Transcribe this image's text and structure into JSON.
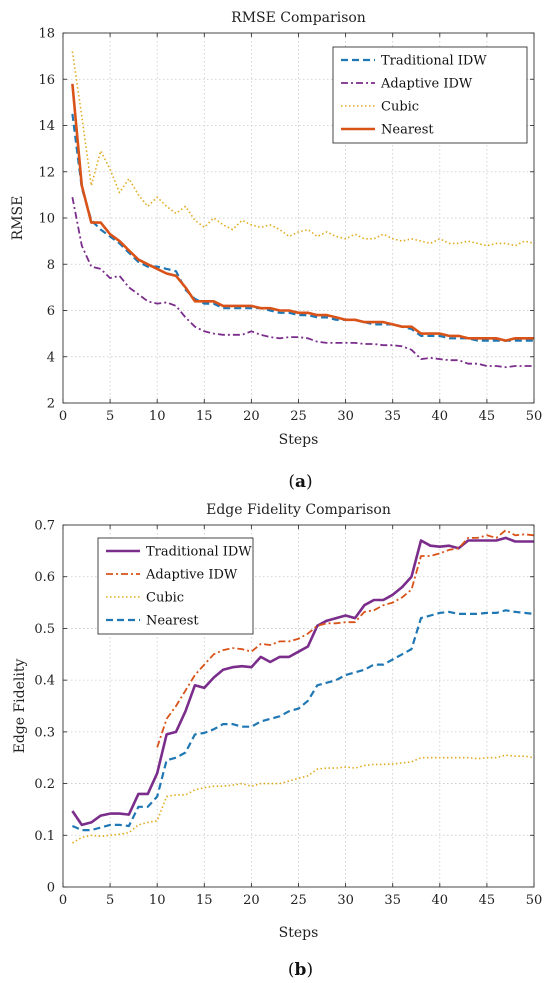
{
  "chart_data": [
    {
      "type": "line",
      "title": "RMSE Comparison",
      "xlabel": "Steps",
      "ylabel": "RMSE",
      "xlim": [
        0,
        50
      ],
      "ylim": [
        2,
        18
      ],
      "xticks": [
        0,
        5,
        10,
        15,
        20,
        25,
        30,
        35,
        40,
        45,
        50
      ],
      "yticks": [
        2,
        4,
        6,
        8,
        10,
        12,
        14,
        16,
        18
      ],
      "grid": true,
      "legend_position": "top-right",
      "panel_label": {
        "open": "(",
        "letter": "a",
        "close": ")"
      },
      "x": [
        1,
        2,
        3,
        4,
        5,
        6,
        7,
        8,
        9,
        10,
        11,
        12,
        13,
        14,
        15,
        16,
        17,
        18,
        19,
        20,
        21,
        22,
        23,
        24,
        25,
        26,
        27,
        28,
        29,
        30,
        31,
        32,
        33,
        34,
        35,
        36,
        37,
        38,
        39,
        40,
        41,
        42,
        43,
        44,
        45,
        46,
        47,
        48,
        49,
        50
      ],
      "series": [
        {
          "name": "Traditional IDW",
          "color": "#1f77b4",
          "dash": "dashed",
          "values": [
            14.5,
            11.3,
            9.9,
            9.5,
            9.2,
            8.9,
            8.5,
            8.1,
            7.9,
            7.9,
            7.8,
            7.7,
            6.9,
            6.5,
            6.3,
            6.3,
            6.1,
            6.1,
            6.1,
            6.1,
            6.1,
            6.0,
            5.9,
            5.9,
            5.8,
            5.8,
            5.7,
            5.7,
            5.6,
            5.6,
            5.6,
            5.5,
            5.4,
            5.4,
            5.4,
            5.3,
            5.2,
            4.9,
            4.9,
            4.9,
            4.8,
            4.8,
            4.8,
            4.7,
            4.7,
            4.7,
            4.7,
            4.7,
            4.7,
            4.7
          ]
        },
        {
          "name": "Adaptive IDW",
          "color": "#7b2d8b",
          "dash": "dashdot",
          "values": [
            10.9,
            8.8,
            7.9,
            7.8,
            7.4,
            7.5,
            7.0,
            6.7,
            6.4,
            6.3,
            6.35,
            6.2,
            5.7,
            5.3,
            5.1,
            5.0,
            4.95,
            4.95,
            4.95,
            5.1,
            4.95,
            4.85,
            4.8,
            4.85,
            4.85,
            4.8,
            4.65,
            4.6,
            4.6,
            4.6,
            4.6,
            4.55,
            4.55,
            4.5,
            4.5,
            4.45,
            4.3,
            3.9,
            3.95,
            3.9,
            3.85,
            3.85,
            3.7,
            3.7,
            3.6,
            3.6,
            3.55,
            3.6,
            3.6,
            3.6
          ]
        },
        {
          "name": "Cubic",
          "color": "#e0ab1e",
          "dash": "dotted",
          "values": [
            17.2,
            14.4,
            11.4,
            12.9,
            12.1,
            11.1,
            11.7,
            11.0,
            10.5,
            10.9,
            10.5,
            10.2,
            10.5,
            9.9,
            9.6,
            10.0,
            9.7,
            9.5,
            9.9,
            9.7,
            9.6,
            9.7,
            9.5,
            9.2,
            9.4,
            9.5,
            9.2,
            9.4,
            9.2,
            9.1,
            9.3,
            9.1,
            9.1,
            9.3,
            9.1,
            9.0,
            9.1,
            9.0,
            8.9,
            9.1,
            8.9,
            8.9,
            9.0,
            8.9,
            8.8,
            8.9,
            8.9,
            8.8,
            9.0,
            8.9
          ]
        },
        {
          "name": "Nearest",
          "color": "#d95319",
          "dash": "solid",
          "values": [
            15.8,
            11.4,
            9.8,
            9.8,
            9.3,
            9.0,
            8.6,
            8.2,
            8.0,
            7.8,
            7.6,
            7.5,
            7.0,
            6.4,
            6.4,
            6.4,
            6.2,
            6.2,
            6.2,
            6.2,
            6.1,
            6.1,
            6.0,
            6.0,
            5.9,
            5.9,
            5.8,
            5.8,
            5.7,
            5.6,
            5.6,
            5.5,
            5.5,
            5.5,
            5.4,
            5.3,
            5.3,
            5.0,
            5.0,
            5.0,
            4.9,
            4.9,
            4.8,
            4.8,
            4.8,
            4.8,
            4.7,
            4.8,
            4.8,
            4.8
          ]
        }
      ]
    },
    {
      "type": "line",
      "title": "Edge Fidelity Comparison",
      "xlabel": "Steps",
      "ylabel": "Edge Fidelity",
      "xlim": [
        0,
        50
      ],
      "ylim": [
        0,
        0.7
      ],
      "xticks": [
        0,
        5,
        10,
        15,
        20,
        25,
        30,
        35,
        40,
        45,
        50
      ],
      "yticks": [
        0,
        0.1,
        0.2,
        0.3,
        0.4,
        0.5,
        0.6,
        0.7
      ],
      "grid": true,
      "legend_position": "top-left",
      "panel_label": {
        "open": "(",
        "letter": "b",
        "close": ")"
      },
      "x": [
        1,
        2,
        3,
        4,
        5,
        6,
        7,
        8,
        9,
        10,
        11,
        12,
        13,
        14,
        15,
        16,
        17,
        18,
        19,
        20,
        21,
        22,
        23,
        24,
        25,
        26,
        27,
        28,
        29,
        30,
        31,
        32,
        33,
        34,
        35,
        36,
        37,
        38,
        39,
        40,
        41,
        42,
        43,
        44,
        45,
        46,
        47,
        48,
        49,
        50
      ],
      "series": [
        {
          "name": "Traditional IDW",
          "color": "#7b2d8b",
          "dash": "solid",
          "values": [
            0.147,
            0.12,
            0.125,
            0.138,
            0.142,
            0.142,
            0.14,
            0.18,
            0.18,
            0.22,
            0.295,
            0.3,
            0.34,
            0.39,
            0.385,
            0.405,
            0.42,
            0.425,
            0.427,
            0.425,
            0.445,
            0.435,
            0.445,
            0.445,
            0.455,
            0.465,
            0.505,
            0.515,
            0.52,
            0.525,
            0.52,
            0.545,
            0.555,
            0.555,
            0.565,
            0.58,
            0.6,
            0.67,
            0.66,
            0.658,
            0.66,
            0.655,
            0.67,
            0.67,
            0.67,
            0.67,
            0.675,
            0.668,
            0.668,
            0.668
          ]
        },
        {
          "name": "Adaptive IDW",
          "color": "#d95319",
          "dash": "dashdot",
          "values": [
            null,
            null,
            null,
            null,
            null,
            null,
            null,
            null,
            null,
            0.27,
            0.325,
            0.35,
            0.38,
            0.41,
            0.43,
            0.45,
            0.458,
            0.462,
            0.46,
            0.455,
            0.47,
            0.468,
            0.475,
            0.475,
            0.48,
            0.49,
            0.505,
            0.51,
            0.51,
            0.512,
            0.512,
            0.532,
            0.535,
            0.545,
            0.55,
            0.56,
            0.575,
            0.64,
            0.64,
            0.645,
            0.652,
            0.655,
            0.675,
            0.675,
            0.68,
            0.675,
            0.69,
            0.68,
            0.682,
            0.68
          ]
        },
        {
          "name": "Cubic",
          "color": "#e0ab1e",
          "dash": "dotted",
          "values": [
            0.085,
            0.096,
            0.1,
            0.098,
            0.1,
            0.102,
            0.105,
            0.12,
            0.125,
            0.128,
            0.175,
            0.178,
            0.178,
            0.188,
            0.192,
            0.195,
            0.195,
            0.197,
            0.2,
            0.195,
            0.2,
            0.2,
            0.2,
            0.205,
            0.21,
            0.215,
            0.228,
            0.23,
            0.23,
            0.232,
            0.23,
            0.235,
            0.237,
            0.237,
            0.238,
            0.24,
            0.242,
            0.25,
            0.25,
            0.25,
            0.25,
            0.25,
            0.25,
            0.248,
            0.25,
            0.25,
            0.255,
            0.253,
            0.253,
            0.25
          ]
        },
        {
          "name": "Nearest",
          "color": "#1f77b4",
          "dash": "dashed",
          "values": [
            0.118,
            0.11,
            0.11,
            0.115,
            0.12,
            0.12,
            0.118,
            0.155,
            0.155,
            0.175,
            0.245,
            0.25,
            0.26,
            0.295,
            0.298,
            0.305,
            0.315,
            0.315,
            0.31,
            0.31,
            0.32,
            0.325,
            0.33,
            0.34,
            0.345,
            0.36,
            0.39,
            0.395,
            0.4,
            0.41,
            0.415,
            0.42,
            0.43,
            0.43,
            0.44,
            0.45,
            0.46,
            0.52,
            0.525,
            0.53,
            0.532,
            0.528,
            0.528,
            0.528,
            0.53,
            0.53,
            0.535,
            0.532,
            0.53,
            0.528
          ]
        }
      ]
    }
  ]
}
